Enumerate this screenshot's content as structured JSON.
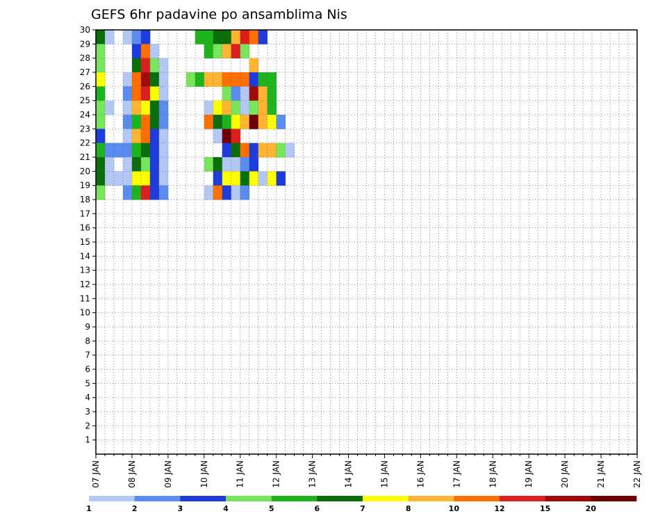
{
  "chart_data": {
    "type": "heatmap",
    "title": "GEFS 6hr padavine po ansamblima Nis",
    "xlabel": "",
    "ylabel": "",
    "x_tick_labels": [
      "07 JAN",
      "08 JAN",
      "09 JAN",
      "10 JAN",
      "11 JAN",
      "12 JAN",
      "13 JAN",
      "14 JAN",
      "15 JAN",
      "16 JAN",
      "17 JAN",
      "18 JAN",
      "19 JAN",
      "20 JAN",
      "21 JAN",
      "22 JAN"
    ],
    "y_tick_labels": [
      "1",
      "2",
      "3",
      "4",
      "5",
      "6",
      "7",
      "8",
      "9",
      "10",
      "11",
      "12",
      "13",
      "14",
      "15",
      "16",
      "17",
      "18",
      "19",
      "20",
      "21",
      "22",
      "23",
      "24",
      "25",
      "26",
      "27",
      "28",
      "29",
      "30"
    ],
    "xlim": [
      "07 JAN 00Z",
      "22 JAN 00Z"
    ],
    "ylim": [
      0,
      30
    ],
    "time_step_hours": 6,
    "grid": "dotted",
    "colorbar": {
      "position": "bottom",
      "tick_labels": [
        "1",
        "2",
        "3",
        "4",
        "5",
        "6",
        "7",
        "8",
        "10",
        "12",
        "15",
        "20"
      ],
      "colors": [
        "#b4c8f5",
        "#5a8cf0",
        "#1e3cdc",
        "#78e65a",
        "#1eb41e",
        "#0a6e0a",
        "#ffff00",
        "#ffb432",
        "#ff6e00",
        "#dc1e1e",
        "#a00a0a",
        "#6e0000"
      ]
    },
    "cells": [
      {
        "member": 30,
        "color_index": [
          5,
          0,
          -1,
          0,
          1,
          2,
          -1,
          -1,
          -1,
          -1,
          -1,
          4,
          4,
          5,
          5,
          7,
          9,
          8,
          2
        ]
      },
      {
        "member": 29,
        "color_index": [
          3,
          -1,
          -1,
          -1,
          2,
          8,
          0,
          -1,
          -1,
          -1,
          -1,
          -1,
          4,
          3,
          7,
          9,
          3
        ]
      },
      {
        "member": 28,
        "color_index": [
          3,
          -1,
          -1,
          -1,
          5,
          9,
          3,
          0,
          -1,
          -1,
          -1,
          -1,
          -1,
          -1,
          -1,
          -1,
          -1,
          7
        ]
      },
      {
        "member": 27,
        "color_index": [
          6,
          -1,
          -1,
          0,
          8,
          10,
          5,
          0,
          -1,
          -1,
          3,
          4,
          7,
          7,
          8,
          8,
          8,
          2,
          4,
          4
        ]
      },
      {
        "member": 26,
        "color_index": [
          4,
          -1,
          -1,
          1,
          8,
          9,
          6,
          0,
          -1,
          -1,
          -1,
          -1,
          -1,
          -1,
          3,
          1,
          0,
          10,
          7,
          4
        ]
      },
      {
        "member": 25,
        "color_index": [
          3,
          0,
          -1,
          0,
          7,
          6,
          5,
          1,
          -1,
          -1,
          -1,
          -1,
          0,
          6,
          7,
          3,
          0,
          3,
          7,
          4
        ]
      },
      {
        "member": 24,
        "color_index": [
          3,
          -1,
          -1,
          1,
          4,
          8,
          5,
          1,
          -1,
          -1,
          -1,
          -1,
          8,
          5,
          4,
          6,
          7,
          11,
          7,
          6,
          1
        ]
      },
      {
        "member": 23,
        "color_index": [
          2,
          -1,
          -1,
          0,
          7,
          8,
          2,
          0,
          -1,
          -1,
          -1,
          -1,
          -1,
          0,
          11,
          9,
          -1,
          -1
        ]
      },
      {
        "member": 22,
        "color_index": [
          4,
          1,
          1,
          1,
          4,
          5,
          2,
          0,
          -1,
          -1,
          -1,
          -1,
          -1,
          -1,
          2,
          5,
          8,
          2,
          7,
          7,
          3,
          0
        ]
      },
      {
        "member": 21,
        "color_index": [
          5,
          0,
          -1,
          0,
          5,
          3,
          2,
          0,
          -1,
          -1,
          -1,
          -1,
          3,
          5,
          0,
          0,
          1,
          2
        ]
      },
      {
        "member": 20,
        "color_index": [
          5,
          0,
          0,
          0,
          6,
          6,
          2,
          0,
          -1,
          -1,
          -1,
          -1,
          -1,
          2,
          6,
          6,
          5,
          6,
          0,
          6,
          2
        ]
      },
      {
        "member": 19,
        "color_index": [
          3,
          -1,
          -1,
          1,
          4,
          9,
          2,
          1,
          -1,
          -1,
          -1,
          -1,
          0,
          8,
          2,
          0,
          1
        ]
      }
    ]
  }
}
